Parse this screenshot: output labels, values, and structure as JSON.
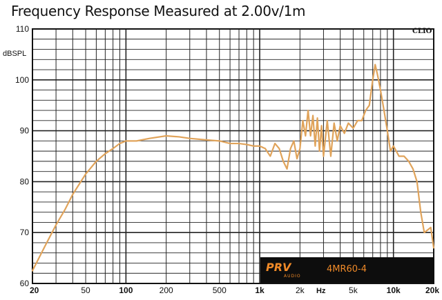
{
  "chart_data": {
    "type": "line",
    "title": "Frequency Response Measured at 2.00v/1m",
    "ylabel": "dBSPL",
    "xlabel": "Hz",
    "watermark": "CLIO",
    "xscale": "log",
    "xlim": [
      20,
      20000
    ],
    "ylim": [
      60,
      110
    ],
    "grid": true,
    "line_color": "#e0a35a",
    "x_ticks": [
      {
        "value": 20,
        "label": "20",
        "bold": true
      },
      {
        "value": 50,
        "label": "50",
        "bold": false
      },
      {
        "value": 100,
        "label": "100",
        "bold": true
      },
      {
        "value": 200,
        "label": "200",
        "bold": false
      },
      {
        "value": 500,
        "label": "500",
        "bold": false
      },
      {
        "value": 1000,
        "label": "1k",
        "bold": true
      },
      {
        "value": 2000,
        "label": "2k",
        "bold": false
      },
      {
        "value": 5000,
        "label": "5k",
        "bold": false
      },
      {
        "value": 10000,
        "label": "10k",
        "bold": true
      },
      {
        "value": 20000,
        "label": "20k",
        "bold": true
      }
    ],
    "y_ticks": [
      {
        "value": 60,
        "label": "60"
      },
      {
        "value": 70,
        "label": "70"
      },
      {
        "value": 80,
        "label": "80"
      },
      {
        "value": 90,
        "label": "90"
      },
      {
        "value": 100,
        "label": "100"
      },
      {
        "value": 110,
        "label": "110"
      }
    ],
    "series": [
      {
        "x": [
          20,
          25,
          30,
          35,
          40,
          50,
          60,
          70,
          80,
          90,
          100,
          120,
          150,
          200,
          250,
          300,
          400,
          500,
          600,
          700,
          800,
          900,
          1000,
          1100,
          1200,
          1300,
          1400,
          1500,
          1600,
          1700,
          1800,
          1900,
          2000,
          2100,
          2200,
          2300,
          2400,
          2500,
          2600,
          2700,
          2800,
          2900,
          3000,
          3200,
          3400,
          3600,
          3800,
          4000,
          4300,
          4600,
          5000,
          5400,
          5800,
          6200,
          6600,
          7000,
          7300,
          7600,
          8000,
          8500,
          9000,
          9500,
          10000,
          10500,
          11000,
          12000,
          13000,
          14000,
          15000,
          16000,
          17000,
          18000,
          19000,
          20000
        ],
        "y": [
          62.5,
          67.5,
          71.5,
          74.5,
          77.5,
          81.5,
          84,
          85.5,
          86.5,
          87.5,
          88,
          88,
          88.5,
          89,
          88.8,
          88.5,
          88.2,
          88,
          87.5,
          87.5,
          87.3,
          87,
          87,
          86.5,
          85,
          87.5,
          86.5,
          84,
          82.5,
          86.5,
          88,
          84.5,
          86.5,
          92,
          89,
          94,
          89,
          93,
          87,
          92.5,
          86,
          91,
          85,
          92,
          85,
          91.5,
          88,
          91,
          89.5,
          91.5,
          90.5,
          92,
          92,
          94,
          95,
          100,
          103,
          101,
          98,
          94,
          90,
          86,
          87,
          86,
          85,
          85,
          84,
          82.5,
          80,
          74,
          70,
          70.5,
          71,
          67
        ]
      }
    ],
    "logo": {
      "brand": "PRV",
      "sub": "AUDIO"
    },
    "model": "4MR60-4"
  }
}
